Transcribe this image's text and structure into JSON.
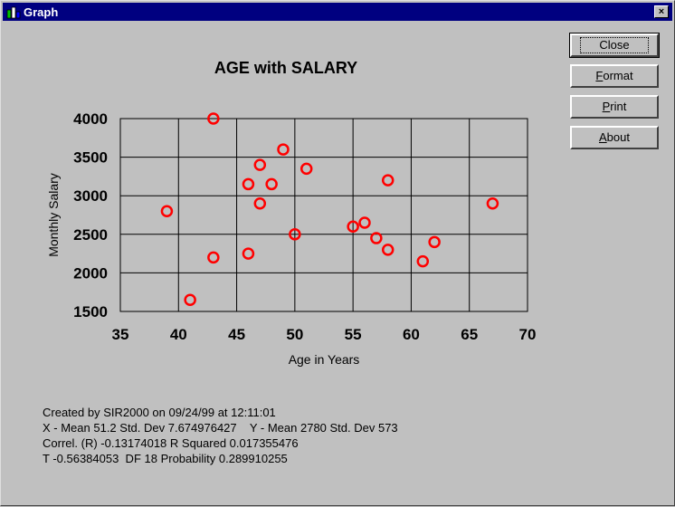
{
  "window": {
    "title": "Graph",
    "close_glyph": "×"
  },
  "buttons": {
    "close": "Close",
    "format_mnemonic": "F",
    "format_rest": "ormat",
    "print_mnemonic": "P",
    "print_rest": "rint",
    "about_mnemonic": "A",
    "about_rest": "bout"
  },
  "stats": {
    "line1": "Created by SIR2000 on 09/24/99 at 12:11:01",
    "line2": "X - Mean 51.2 Std. Dev 7.674976427    Y - Mean 2780 Std. Dev 573",
    "line3": "Correl. (R) -0.13174018 R Squared 0.017355476",
    "line4": "T -0.56384053  DF 18 Probability 0.289910255"
  },
  "colors": {
    "marker": "#ff0000",
    "background": "#c0c0c0",
    "titlebar": "#000080"
  },
  "chart_data": {
    "type": "scatter",
    "title": "AGE with SALARY",
    "xlabel": "Age in Years",
    "ylabel": "Monthly Salary",
    "xlim": [
      35,
      70
    ],
    "ylim": [
      1500,
      4000
    ],
    "xticks": [
      35,
      40,
      45,
      50,
      55,
      60,
      65,
      70
    ],
    "yticks": [
      1500,
      2000,
      2500,
      3000,
      3500,
      4000
    ],
    "grid": true,
    "points": [
      {
        "x": 39,
        "y": 2800
      },
      {
        "x": 41,
        "y": 1650
      },
      {
        "x": 43,
        "y": 4000
      },
      {
        "x": 43,
        "y": 2200
      },
      {
        "x": 46,
        "y": 3150
      },
      {
        "x": 46,
        "y": 2250
      },
      {
        "x": 47,
        "y": 3400
      },
      {
        "x": 47,
        "y": 2900
      },
      {
        "x": 48,
        "y": 3150
      },
      {
        "x": 49,
        "y": 3600
      },
      {
        "x": 50,
        "y": 2500
      },
      {
        "x": 51,
        "y": 3350
      },
      {
        "x": 55,
        "y": 2600
      },
      {
        "x": 56,
        "y": 2650
      },
      {
        "x": 57,
        "y": 2450
      },
      {
        "x": 58,
        "y": 3200
      },
      {
        "x": 58,
        "y": 2300
      },
      {
        "x": 61,
        "y": 2150
      },
      {
        "x": 62,
        "y": 2400
      },
      {
        "x": 67,
        "y": 2900
      }
    ]
  }
}
